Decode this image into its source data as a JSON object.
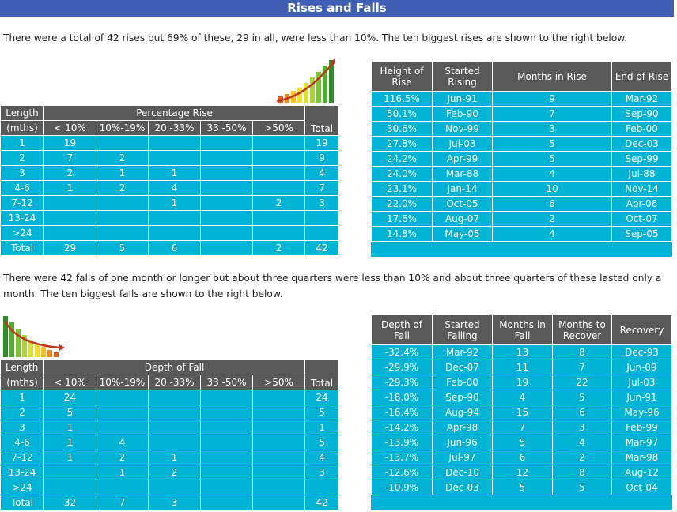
{
  "title": "Rises and Falls",
  "rises_intro": "There were a total of 42 rises but 69% of these, 29 in all, were less than 10%. The ten biggest rises are shown to the right below.",
  "falls_intro": "There were 42 falls of one month or longer but about three quarters were less than 10% and about three quarters of these lasted only a month. The ten biggest falls are shown to the right below.",
  "icons": {
    "rise": "rising-bar-chart-icon",
    "fall": "falling-bar-chart-icon"
  },
  "colors": {
    "header": "#595959",
    "cell": "#00b2d3",
    "title_bar": "#3f5fb5"
  },
  "rise_dist": {
    "length_header": [
      "Length",
      "(mths)"
    ],
    "group_header": "Percentage Rise",
    "subheaders": [
      "< 10%",
      "10%-19%",
      "20 -33%",
      "33 -50%",
      ">50%"
    ],
    "total_header": "Total",
    "rows": [
      {
        "length": "1",
        "cells": [
          "19",
          "",
          "",
          "",
          ""
        ],
        "total": "19"
      },
      {
        "length": "2",
        "cells": [
          "7",
          "2",
          "",
          "",
          ""
        ],
        "total": "9"
      },
      {
        "length": "3",
        "cells": [
          "2",
          "1",
          "1",
          "",
          ""
        ],
        "total": "4"
      },
      {
        "length": "4-6",
        "cells": [
          "1",
          "2",
          "4",
          "",
          ""
        ],
        "total": "7"
      },
      {
        "length": "7-12",
        "cells": [
          "",
          "",
          "1",
          "",
          "2"
        ],
        "total": "3"
      },
      {
        "length": "13-24",
        "cells": [
          "",
          "",
          "",
          "",
          ""
        ],
        "total": ""
      },
      {
        "length": ">24",
        "cells": [
          "",
          "",
          "",
          "",
          ""
        ],
        "total": ""
      },
      {
        "length": "Total",
        "cells": [
          "29",
          "5",
          "6",
          "",
          "2"
        ],
        "total": "42"
      }
    ]
  },
  "biggest_rises": {
    "headers": [
      [
        "Height of",
        "Rise"
      ],
      [
        "Started",
        "Rising"
      ],
      [
        "Months in Rise"
      ],
      [
        "End of Rise"
      ]
    ],
    "rows": [
      [
        "116.5%",
        "Jun-91",
        "9",
        "Mar-92"
      ],
      [
        "50.1%",
        "Feb-90",
        "7",
        "Sep-90"
      ],
      [
        "30.6%",
        "Nov-99",
        "3",
        "Feb-00"
      ],
      [
        "27.8%",
        "Jul-03",
        "5",
        "Dec-03"
      ],
      [
        "24.2%",
        "Apr-99",
        "5",
        "Sep-99"
      ],
      [
        "24.0%",
        "Mar-88",
        "4",
        "Jul-88"
      ],
      [
        "23.1%",
        "Jan-14",
        "10",
        "Nov-14"
      ],
      [
        "22.0%",
        "Oct-05",
        "6",
        "Apr-06"
      ],
      [
        "17.6%",
        "Aug-07",
        "2",
        "Oct-07"
      ],
      [
        "14.8%",
        "May-05",
        "4",
        "Sep-05"
      ]
    ]
  },
  "fall_dist": {
    "length_header": [
      "Length",
      "(mths)"
    ],
    "group_header": "Depth of Fall",
    "subheaders": [
      "< 10%",
      "10%-19%",
      "20 -33%",
      "33 -50%",
      ">50%"
    ],
    "total_header": "Total",
    "rows": [
      {
        "length": "1",
        "cells": [
          "24",
          "",
          "",
          "",
          ""
        ],
        "total": "24"
      },
      {
        "length": "2",
        "cells": [
          "5",
          "",
          "",
          "",
          ""
        ],
        "total": "5"
      },
      {
        "length": "3",
        "cells": [
          "1",
          "",
          "",
          "",
          ""
        ],
        "total": "1"
      },
      {
        "length": "4-6",
        "cells": [
          "1",
          "4",
          "",
          "",
          ""
        ],
        "total": "5"
      },
      {
        "length": "7-12",
        "cells": [
          "1",
          "2",
          "1",
          "",
          ""
        ],
        "total": "4"
      },
      {
        "length": "13-24",
        "cells": [
          "",
          "1",
          "2",
          "",
          ""
        ],
        "total": "3"
      },
      {
        "length": ">24",
        "cells": [
          "",
          "",
          "",
          "",
          ""
        ],
        "total": ""
      },
      {
        "length": "Total",
        "cells": [
          "32",
          "7",
          "3",
          "",
          ""
        ],
        "total": "42"
      }
    ]
  },
  "biggest_falls": {
    "headers": [
      [
        "Depth of",
        "Fall"
      ],
      [
        "Started",
        "Falling"
      ],
      [
        "Months in",
        "Fall"
      ],
      [
        "Months to",
        "Recover"
      ],
      [
        "Recovery"
      ]
    ],
    "rows": [
      [
        "-32.4%",
        "Mar-92",
        "13",
        "8",
        "Dec-93"
      ],
      [
        "-29.9%",
        "Dec-07",
        "11",
        "7",
        "Jun-09"
      ],
      [
        "-29.3%",
        "Feb-00",
        "19",
        "22",
        "Jul-03"
      ],
      [
        "-18.0%",
        "Sep-90",
        "4",
        "5",
        "Jun-91"
      ],
      [
        "-16.4%",
        "Aug-94",
        "15",
        "6",
        "May-96"
      ],
      [
        "-14.2%",
        "Apr-98",
        "7",
        "3",
        "Feb-99"
      ],
      [
        "-13.9%",
        "Jun-96",
        "5",
        "4",
        "Mar-97"
      ],
      [
        "-13.7%",
        "Jul-97",
        "6",
        "2",
        "Mar-98"
      ],
      [
        "-12.6%",
        "Dec-10",
        "12",
        "8",
        "Aug-12"
      ],
      [
        "-10.9%",
        "Dec-03",
        "5",
        "5",
        "Oct-04"
      ]
    ]
  }
}
